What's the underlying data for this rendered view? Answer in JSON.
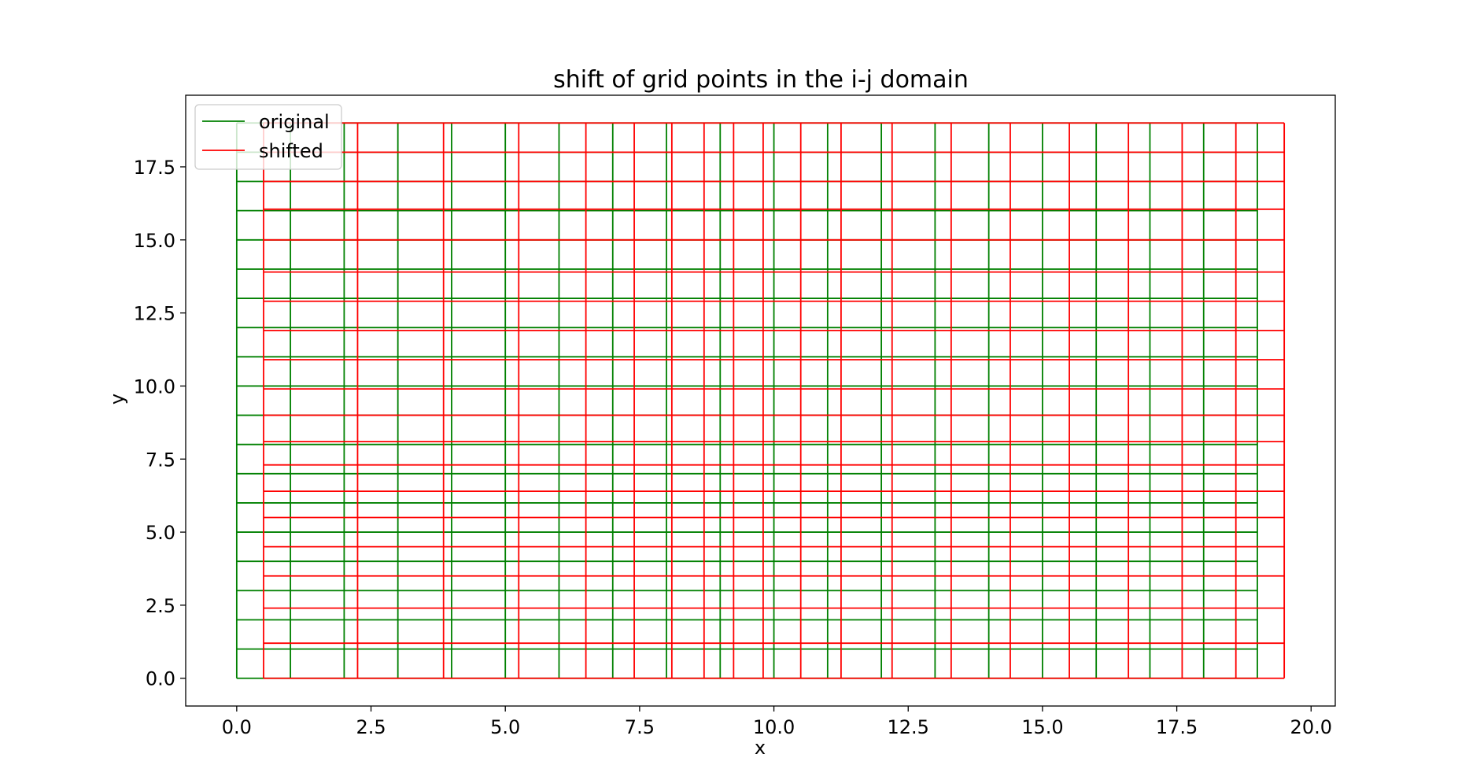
{
  "chart_data": {
    "type": "line",
    "title": "shift of grid points in the i-j domain",
    "xlabel": "x",
    "ylabel": "y",
    "xlim": [
      -0.95,
      20.45
    ],
    "ylim": [
      -0.95,
      19.95
    ],
    "x_ticks": [
      0.0,
      2.5,
      5.0,
      7.5,
      10.0,
      12.5,
      15.0,
      17.5,
      20.0
    ],
    "x_tick_labels": [
      "0.0",
      "2.5",
      "5.0",
      "7.5",
      "10.0",
      "12.5",
      "15.0",
      "17.5",
      "20.0"
    ],
    "y_ticks": [
      0.0,
      2.5,
      5.0,
      7.5,
      10.0,
      12.5,
      15.0,
      17.5
    ],
    "y_tick_labels": [
      "0.0",
      "2.5",
      "5.0",
      "7.5",
      "10.0",
      "12.5",
      "15.0",
      "17.5"
    ],
    "grid": false,
    "legend_position": "top-left",
    "series": [
      {
        "name": "original",
        "color": "#008000",
        "x_lines": [
          0,
          1,
          2,
          3,
          4,
          5,
          6,
          7,
          8,
          9,
          10,
          11,
          12,
          13,
          14,
          15,
          16,
          17,
          18,
          19
        ],
        "y_lines": [
          0,
          1,
          2,
          3,
          4,
          5,
          6,
          7,
          8,
          9,
          10,
          11,
          12,
          13,
          14,
          15,
          16,
          17,
          18,
          19
        ],
        "x_range": [
          0,
          19
        ],
        "y_range": [
          0,
          19
        ]
      },
      {
        "name": "shifted",
        "color": "#ff0000",
        "x_lines": [
          0.5,
          2.25,
          3.85,
          5.25,
          6.5,
          7.4,
          8.1,
          8.7,
          9.25,
          9.8,
          10.5,
          11.25,
          12.2,
          13.3,
          14.4,
          15.5,
          16.6,
          17.6,
          18.6,
          19.5
        ],
        "y_lines": [
          0.0,
          1.2,
          2.4,
          3.5,
          4.5,
          5.5,
          6.4,
          7.3,
          8.1,
          9.0,
          9.9,
          10.9,
          11.9,
          12.9,
          13.9,
          15.0,
          16.05,
          17.0,
          18.0,
          19.0
        ],
        "x_range": [
          0.5,
          19.5
        ],
        "y_range": [
          0,
          19
        ]
      }
    ]
  }
}
